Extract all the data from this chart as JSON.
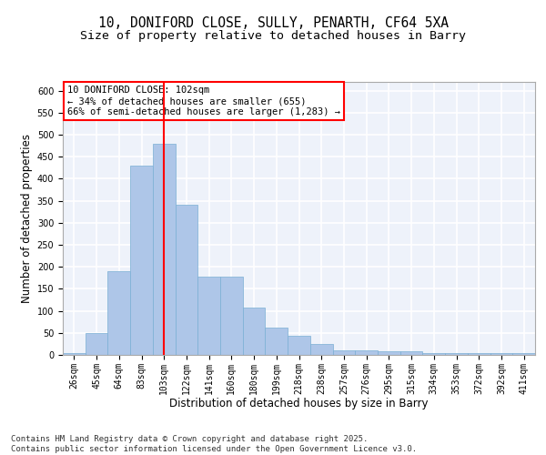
{
  "title_line1": "10, DONIFORD CLOSE, SULLY, PENARTH, CF64 5XA",
  "title_line2": "Size of property relative to detached houses in Barry",
  "xlabel": "Distribution of detached houses by size in Barry",
  "ylabel": "Number of detached properties",
  "categories": [
    "26sqm",
    "45sqm",
    "64sqm",
    "83sqm",
    "103sqm",
    "122sqm",
    "141sqm",
    "160sqm",
    "180sqm",
    "199sqm",
    "218sqm",
    "238sqm",
    "257sqm",
    "276sqm",
    "295sqm",
    "315sqm",
    "334sqm",
    "353sqm",
    "372sqm",
    "392sqm",
    "411sqm"
  ],
  "values": [
    5,
    50,
    190,
    430,
    480,
    340,
    178,
    178,
    108,
    62,
    44,
    24,
    11,
    11,
    8,
    8,
    5,
    4,
    5,
    4,
    4
  ],
  "bar_color": "#aec6e8",
  "bar_edge_color": "#7aafd4",
  "vline_x_index": 4,
  "vline_color": "red",
  "annotation_text": "10 DONIFORD CLOSE: 102sqm\n← 34% of detached houses are smaller (655)\n66% of semi-detached houses are larger (1,283) →",
  "annotation_box_color": "white",
  "annotation_box_edge": "red",
  "ylim": [
    0,
    620
  ],
  "yticks": [
    0,
    50,
    100,
    150,
    200,
    250,
    300,
    350,
    400,
    450,
    500,
    550,
    600
  ],
  "footer_text": "Contains HM Land Registry data © Crown copyright and database right 2025.\nContains public sector information licensed under the Open Government Licence v3.0.",
  "bg_color": "#eef2fa",
  "grid_color": "white",
  "title_fontsize": 10.5,
  "subtitle_fontsize": 9.5,
  "axis_label_fontsize": 8.5,
  "tick_fontsize": 7,
  "footer_fontsize": 6.5,
  "annotation_fontsize": 7.5
}
